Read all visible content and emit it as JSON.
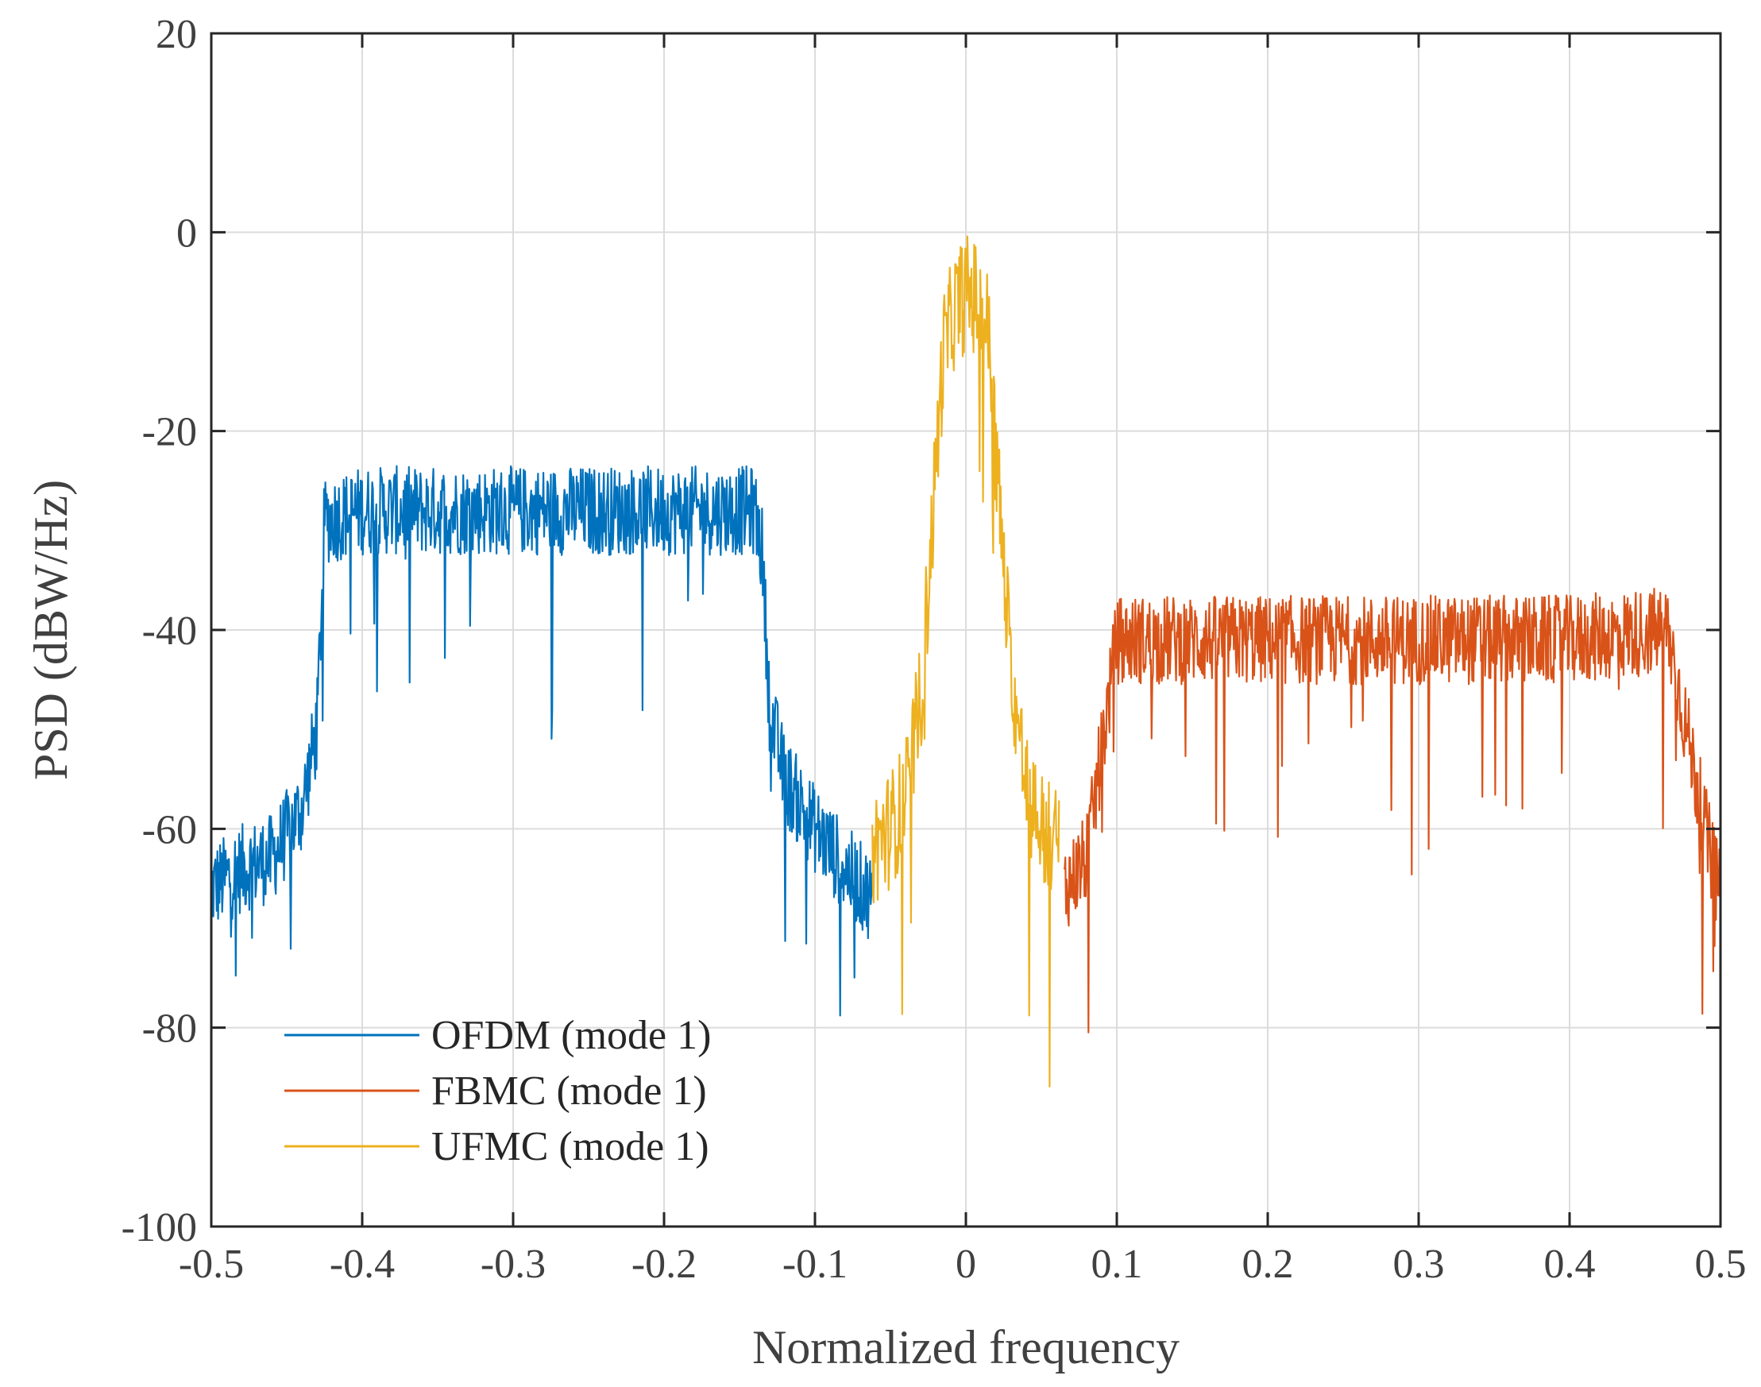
{
  "chart_data": {
    "type": "line",
    "title": "",
    "xlabel": "Normalized frequency",
    "ylabel": "PSD (dBW/Hz)",
    "xlim": [
      -0.5,
      0.5
    ],
    "ylim": [
      -100,
      20
    ],
    "xticks": [
      -0.5,
      -0.4,
      -0.3,
      -0.2,
      -0.1,
      0,
      0.1,
      0.2,
      0.3,
      0.4,
      0.5
    ],
    "xtick_labels": [
      "-0.5",
      "-0.4",
      "-0.3",
      "-0.2",
      "-0.1",
      "0",
      "0.1",
      "0.2",
      "0.3",
      "0.4",
      "0.5"
    ],
    "yticks": [
      -100,
      -80,
      -60,
      -40,
      -20,
      0,
      20
    ],
    "ytick_labels": [
      "-100",
      "-80",
      "-60",
      "-40",
      "-20",
      "0",
      "20"
    ],
    "grid": true,
    "legend_position": "bottom-left",
    "series": [
      {
        "name": "OFDM (mode 1)",
        "color": "#0072BD",
        "envelope": [
          [
            -0.5,
            -66
          ],
          [
            -0.48,
            -64
          ],
          [
            -0.46,
            -63
          ],
          [
            -0.44,
            -58
          ],
          [
            -0.43,
            -50
          ],
          [
            -0.425,
            -29
          ],
          [
            -0.4,
            -28
          ],
          [
            -0.3,
            -28
          ],
          [
            -0.2,
            -28
          ],
          [
            -0.14,
            -28
          ],
          [
            -0.135,
            -32
          ],
          [
            -0.13,
            -48
          ],
          [
            -0.12,
            -55
          ],
          [
            -0.1,
            -60
          ],
          [
            -0.08,
            -64
          ],
          [
            -0.062,
            -67
          ]
        ],
        "noise_amplitude": 4.5,
        "dip_depth": 22
      },
      {
        "name": "FBMC (mode 1)",
        "color": "#D95319",
        "envelope": [
          [
            0.065,
            -66
          ],
          [
            0.08,
            -63
          ],
          [
            0.09,
            -52
          ],
          [
            0.1,
            -41
          ],
          [
            0.2,
            -41
          ],
          [
            0.3,
            -41
          ],
          [
            0.4,
            -41
          ],
          [
            0.465,
            -40
          ],
          [
            0.47,
            -44
          ],
          [
            0.48,
            -52
          ],
          [
            0.49,
            -60
          ],
          [
            0.5,
            -67
          ]
        ],
        "noise_amplitude": 4.5,
        "dip_depth": 22
      },
      {
        "name": "UFMC (mode 1)",
        "color": "#EDB120",
        "envelope": [
          [
            -0.062,
            -62
          ],
          [
            -0.05,
            -60
          ],
          [
            -0.04,
            -57
          ],
          [
            -0.03,
            -47
          ],
          [
            -0.025,
            -36
          ],
          [
            -0.02,
            -24
          ],
          [
            -0.015,
            -12
          ],
          [
            -0.008,
            -8
          ],
          [
            0.0,
            -6
          ],
          [
            0.008,
            -7
          ],
          [
            0.015,
            -10
          ],
          [
            0.02,
            -22
          ],
          [
            0.025,
            -34
          ],
          [
            0.03,
            -44
          ],
          [
            0.04,
            -56
          ],
          [
            0.05,
            -60
          ],
          [
            0.062,
            -62
          ]
        ],
        "noise_amplitude": 6,
        "dip_depth": 26
      }
    ]
  }
}
